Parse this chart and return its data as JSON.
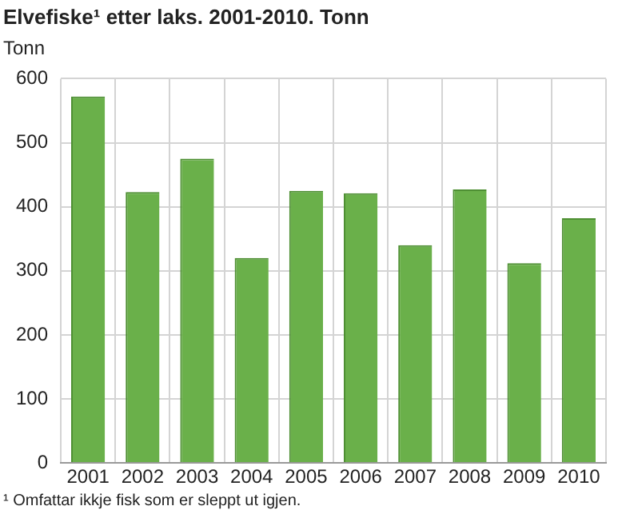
{
  "chart_data": {
    "type": "bar",
    "title": "Elvefiske¹ etter laks. 2001-2010. Tonn",
    "ylabel": "Tonn",
    "categories": [
      "2001",
      "2002",
      "2003",
      "2004",
      "2005",
      "2006",
      "2007",
      "2008",
      "2009",
      "2010"
    ],
    "values": [
      572,
      423,
      475,
      320,
      425,
      421,
      340,
      427,
      312,
      382
    ],
    "color": "#6ab04a",
    "ylim": [
      0,
      600
    ],
    "yticks": [
      0,
      100,
      200,
      300,
      400,
      500,
      600
    ],
    "grid": true,
    "annotations": [
      "¹ Omfattar ikkje fisk som er sleppt ut igjen."
    ]
  }
}
